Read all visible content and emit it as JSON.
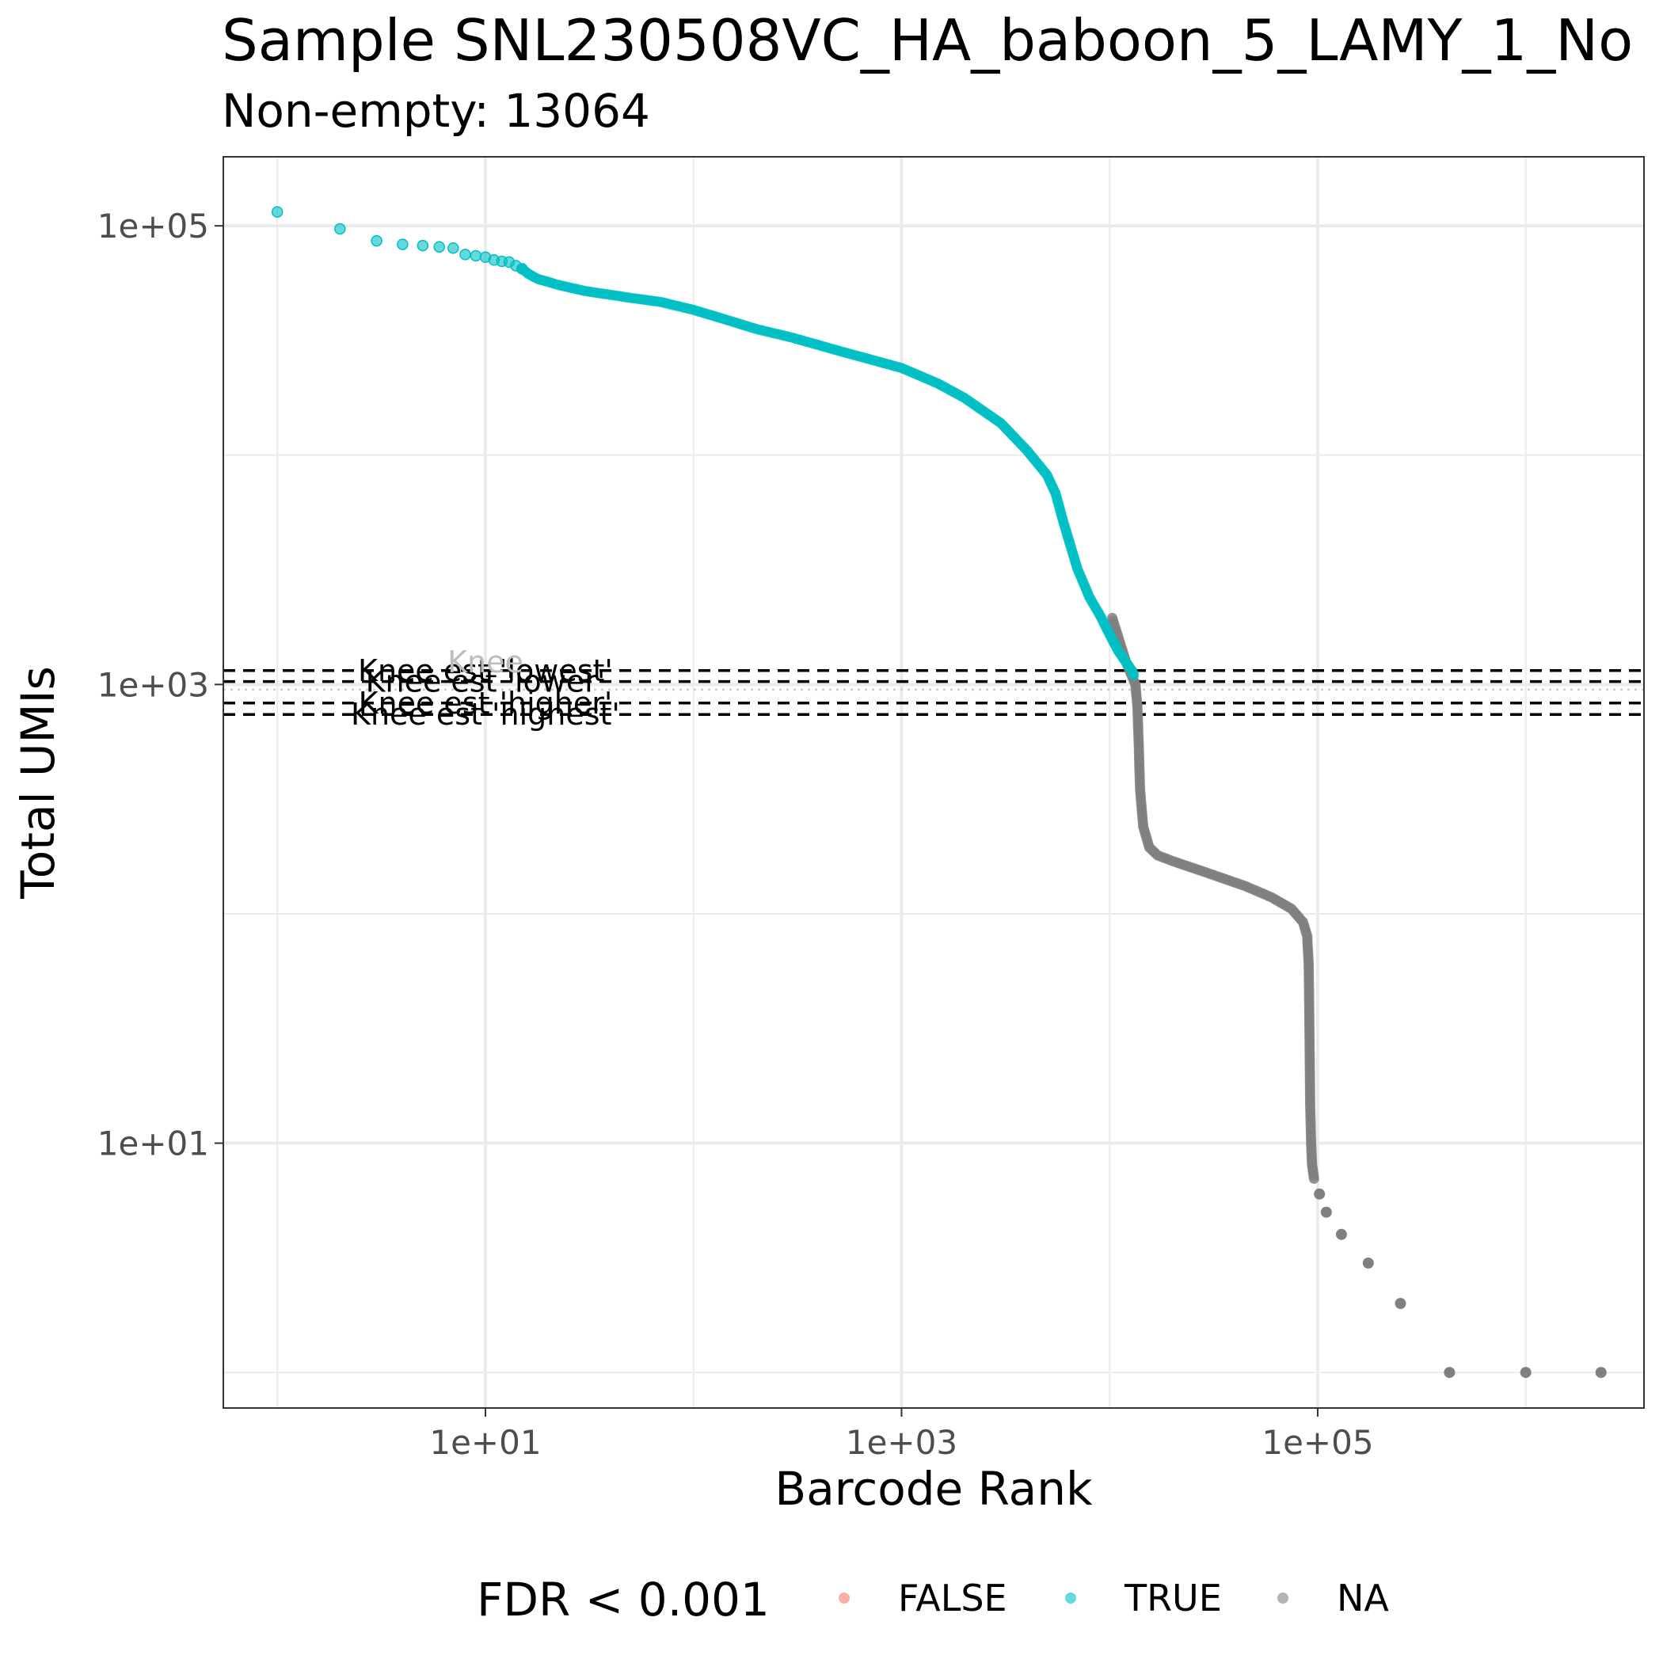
{
  "chart_data": {
    "type": "scatter",
    "title": "Sample SNL230508VC_HA_baboon_5_LAMY_1_No",
    "subtitle": "Non-empty: 13064",
    "xlabel": "Barcode Rank",
    "ylabel": "Total UMIs",
    "xscale": "log10",
    "yscale": "log10",
    "xlim": [
      0.55,
      3700000
    ],
    "ylim": [
      0.7,
      200000
    ],
    "x_ticks": [
      10,
      1000,
      100000
    ],
    "x_tick_labels": [
      "1e+01",
      "1e+03",
      "1e+05"
    ],
    "y_ticks": [
      10,
      1000,
      100000
    ],
    "y_tick_labels": [
      "1e+01",
      "1e+03",
      "1e+05"
    ],
    "grid": true,
    "legend": {
      "title": "FDR < 0.001",
      "position": "bottom",
      "entries": [
        {
          "label": "FALSE",
          "color": "#f8766d"
        },
        {
          "label": "TRUE",
          "color": "#00bfc4"
        },
        {
          "label": "NA",
          "color": "#808080"
        }
      ]
    },
    "hlines": [
      {
        "label": "Knee est 'lowest'",
        "y": 1150,
        "style": "dashed"
      },
      {
        "label": "Knee est 'lower'",
        "y": 1030,
        "style": "dashed"
      },
      {
        "label": "Knee est 'higher'",
        "y": 830,
        "style": "dashed"
      },
      {
        "label": "Knee est 'highest'",
        "y": 740,
        "style": "dashed"
      },
      {
        "label": "Knee",
        "y": 950,
        "style": "dotted"
      }
    ],
    "series": [
      {
        "name": "TRUE",
        "color": "#00bfc4",
        "points": [
          [
            1,
            115000
          ],
          [
            2,
            97000
          ],
          [
            3,
            86000
          ],
          [
            4,
            83000
          ],
          [
            5,
            82000
          ],
          [
            6,
            81000
          ],
          [
            7,
            80000
          ],
          [
            8,
            75000
          ],
          [
            9,
            74000
          ],
          [
            10,
            73000
          ],
          [
            11,
            71000
          ],
          [
            12,
            70000
          ],
          [
            13,
            69500
          ],
          [
            14,
            67000
          ],
          [
            15,
            65000
          ],
          [
            16,
            62000
          ],
          [
            17,
            60000
          ],
          [
            18,
            58500
          ],
          [
            20,
            57000
          ],
          [
            22,
            55500
          ],
          [
            25,
            54000
          ],
          [
            30,
            52000
          ],
          [
            40,
            50000
          ],
          [
            50,
            48500
          ],
          [
            70,
            46500
          ],
          [
            100,
            43000
          ],
          [
            150,
            38500
          ],
          [
            200,
            35500
          ],
          [
            300,
            32500
          ],
          [
            500,
            28500
          ],
          [
            1000,
            24000
          ],
          [
            1500,
            20500
          ],
          [
            2000,
            17800
          ],
          [
            3000,
            13800
          ],
          [
            4000,
            10500
          ],
          [
            5000,
            8200
          ],
          [
            5500,
            6800
          ],
          [
            6000,
            5100
          ],
          [
            7000,
            3200
          ],
          [
            8000,
            2400
          ],
          [
            9000,
            2000
          ],
          [
            10000,
            1650
          ],
          [
            11000,
            1400
          ],
          [
            12000,
            1250
          ],
          [
            12800,
            1150
          ],
          [
            13064,
            1100
          ]
        ]
      },
      {
        "name": "NA",
        "color": "#808080",
        "points": [
          [
            10300,
            1950
          ],
          [
            12000,
            1250
          ],
          [
            13300,
            1000
          ],
          [
            13600,
            800
          ],
          [
            13800,
            550
          ],
          [
            14000,
            350
          ],
          [
            14500,
            240
          ],
          [
            15500,
            195
          ],
          [
            17000,
            180
          ],
          [
            20000,
            170
          ],
          [
            30000,
            150
          ],
          [
            45000,
            132
          ],
          [
            60000,
            118
          ],
          [
            75000,
            105
          ],
          [
            85000,
            92
          ],
          [
            89000,
            80
          ],
          [
            90500,
            60
          ],
          [
            91000,
            40
          ],
          [
            91500,
            25
          ],
          [
            92000,
            15
          ],
          [
            93000,
            10
          ],
          [
            94000,
            8
          ],
          [
            96000,
            7
          ],
          [
            102000,
            6
          ],
          [
            110000,
            5
          ],
          [
            130000,
            4
          ],
          [
            175000,
            3
          ],
          [
            250000,
            2
          ],
          [
            430000,
            1
          ],
          [
            1000000,
            1
          ],
          [
            2300000,
            1
          ]
        ]
      }
    ]
  }
}
